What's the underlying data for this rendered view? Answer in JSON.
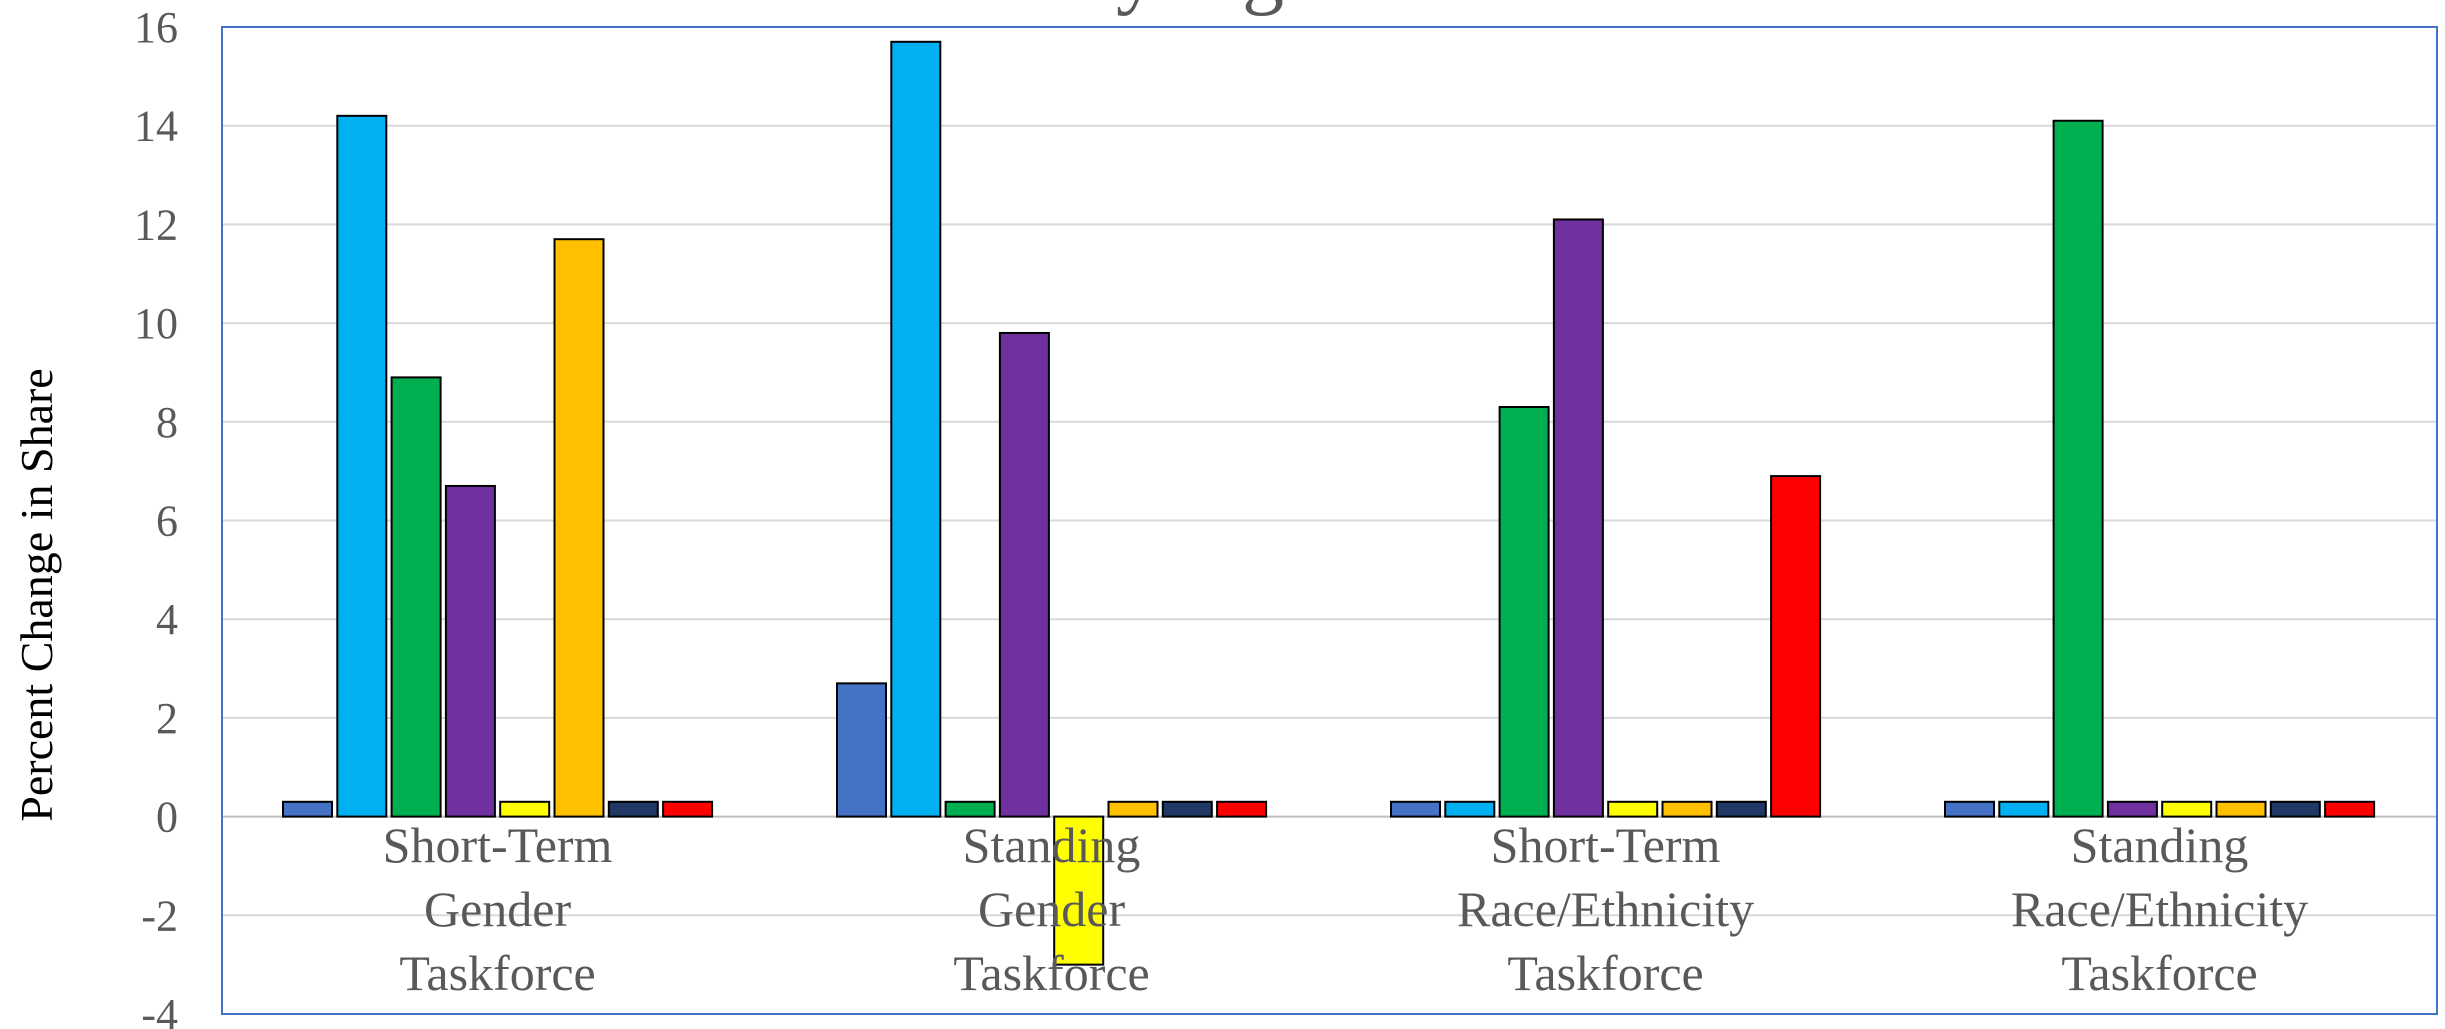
{
  "chart_data": {
    "type": "bar",
    "title": "...y ...g...",
    "ylabel": "Percent Change in Share",
    "xlabel": "",
    "ylim": [
      -4,
      16
    ],
    "yticks": [
      -4,
      -2,
      0,
      2,
      4,
      6,
      8,
      10,
      12,
      14,
      16
    ],
    "grid": true,
    "legend": "none",
    "categories": [
      [
        "Short-Term",
        "Gender",
        "Taskforce"
      ],
      [
        "Standing",
        "Gender",
        "Taskforce"
      ],
      [
        "Short-Term",
        "Race/Ethnicity",
        "Taskforce"
      ],
      [
        "Standing",
        "Race/Ethnicity",
        "Taskforce"
      ]
    ],
    "series": [
      {
        "color": "#4472C4",
        "values": [
          0.3,
          2.7,
          0.3,
          0.3
        ]
      },
      {
        "color": "#00B0F0",
        "values": [
          14.2,
          15.7,
          0.3,
          0.3
        ]
      },
      {
        "color": "#00B050",
        "values": [
          8.9,
          0.3,
          8.3,
          14.1
        ]
      },
      {
        "color": "#7030A0",
        "values": [
          6.7,
          9.8,
          12.1,
          0.3
        ]
      },
      {
        "color": "#FFFF00",
        "values": [
          0.3,
          -3.0,
          0.3,
          0.3
        ]
      },
      {
        "color": "#FFC000",
        "values": [
          11.7,
          0.3,
          0.3,
          0.3
        ]
      },
      {
        "color": "#203864",
        "values": [
          0.3,
          0.3,
          0.3,
          0.3
        ]
      },
      {
        "color": "#FF0000",
        "values": [
          0.3,
          0.3,
          6.9,
          0.3
        ]
      }
    ]
  }
}
